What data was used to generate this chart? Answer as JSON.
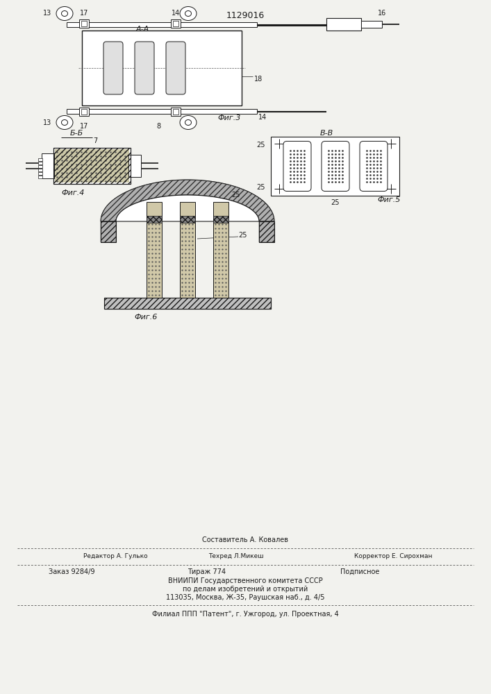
{
  "title": "1129016",
  "bg": "#f2f2ee",
  "lc": "#1a1a1a",
  "fig3_label": "Фиг.3",
  "fig4_label": "Фиг.4",
  "fig5_label": "Фиг.5",
  "fig6_label": "Фиг.6",
  "sec_aa": "A-A",
  "sec_bb": "Б-Б",
  "sec_vv": "В-В",
  "lbl_13": "13",
  "lbl_14": "14",
  "lbl_16": "16",
  "lbl_17": "17",
  "lbl_18": "18",
  "lbl_7": "7",
  "lbl_8": "8",
  "lbl_25": "25",
  "f1": "Составитель А. Ковалев",
  "f2l": "Редактор А. Гулько",
  "f2m": "Техред Л.Микеш",
  "f2r": "Корректор Е. Сирохман",
  "f3l": "Заказ 9284/9",
  "f3m": "Тираж 774",
  "f3r": "Подписное",
  "f4": "ВНИИПИ Государственного комитета СССР",
  "f5": "по делам изобретений и открытий",
  "f6": "113035, Москва, Ж-35, Раушская наб., д. 4/5",
  "f7": "Филиал ППП \"Патент\", г. Ужгород, ул. Проектная, 4"
}
